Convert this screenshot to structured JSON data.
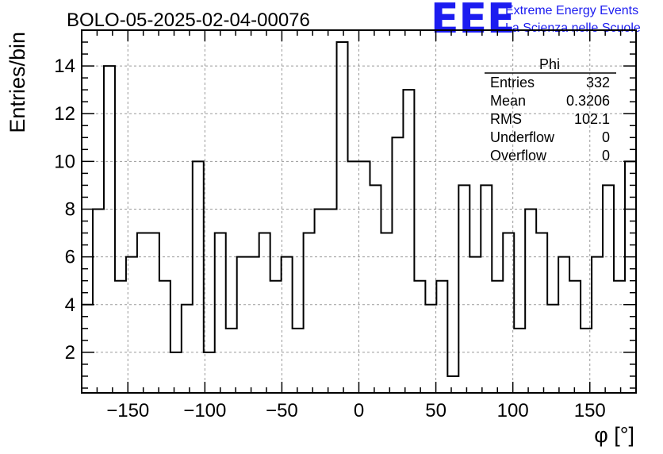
{
  "title": "BOLO-05-2025-02-04-00076",
  "branding": {
    "logo": "EEE",
    "line1": "Extreme Energy Events",
    "line2": "La Scienza nelle Scuole",
    "color": "#1c1cf0"
  },
  "stats_box": {
    "name": "Phi",
    "rows": [
      {
        "label": "Entries",
        "value": "332"
      },
      {
        "label": "Mean",
        "value": "0.3206"
      },
      {
        "label": "RMS",
        "value": "102.1"
      },
      {
        "label": "Underflow",
        "value": "0"
      },
      {
        "label": "Overflow",
        "value": "0"
      }
    ]
  },
  "chart_data": {
    "type": "bar",
    "style": "step-histogram",
    "xlabel": "φ [°]",
    "ylabel": "Entries/bin",
    "xlim": [
      -180,
      180
    ],
    "ylim": [
      0.3,
      15.5
    ],
    "grid": true,
    "bin_edges": [
      -180,
      -172.8,
      -165.6,
      -158.4,
      -151.2,
      -144,
      -136.8,
      -129.6,
      -122.4,
      -115.2,
      -108,
      -100.8,
      -93.6,
      -86.4,
      -79.2,
      -72,
      -64.8,
      -57.6,
      -50.4,
      -43.2,
      -36,
      -28.8,
      -21.6,
      -14.4,
      -7.2,
      0,
      7.2,
      14.4,
      21.6,
      28.8,
      36,
      43.2,
      50.4,
      57.6,
      64.8,
      72,
      79.2,
      86.4,
      93.6,
      100.8,
      108,
      115.2,
      122.4,
      129.6,
      136.8,
      144,
      151.2,
      158.4,
      165.6,
      172.8,
      180
    ],
    "values": [
      4,
      8,
      14,
      5,
      6,
      7,
      7,
      5,
      2,
      4,
      10,
      2,
      7,
      3,
      6,
      6,
      7,
      5,
      6,
      3,
      7,
      8,
      8,
      15,
      10,
      10,
      9,
      7,
      11,
      13,
      5,
      4,
      5,
      1,
      9,
      6,
      9,
      5,
      7,
      3,
      8,
      7,
      4,
      6,
      5,
      3,
      6,
      9,
      5,
      10
    ],
    "x_ticks": [
      {
        "v": -150,
        "label": "−150"
      },
      {
        "v": -100,
        "label": "−100"
      },
      {
        "v": -50,
        "label": "−50"
      },
      {
        "v": 0,
        "label": "0"
      },
      {
        "v": 50,
        "label": "50"
      },
      {
        "v": 100,
        "label": "100"
      },
      {
        "v": 150,
        "label": "150"
      }
    ],
    "y_ticks": [
      {
        "v": 2,
        "label": "2"
      },
      {
        "v": 4,
        "label": "4"
      },
      {
        "v": 6,
        "label": "6"
      },
      {
        "v": 8,
        "label": "8"
      },
      {
        "v": 10,
        "label": "10"
      },
      {
        "v": 12,
        "label": "12"
      },
      {
        "v": 14,
        "label": "14"
      }
    ]
  }
}
